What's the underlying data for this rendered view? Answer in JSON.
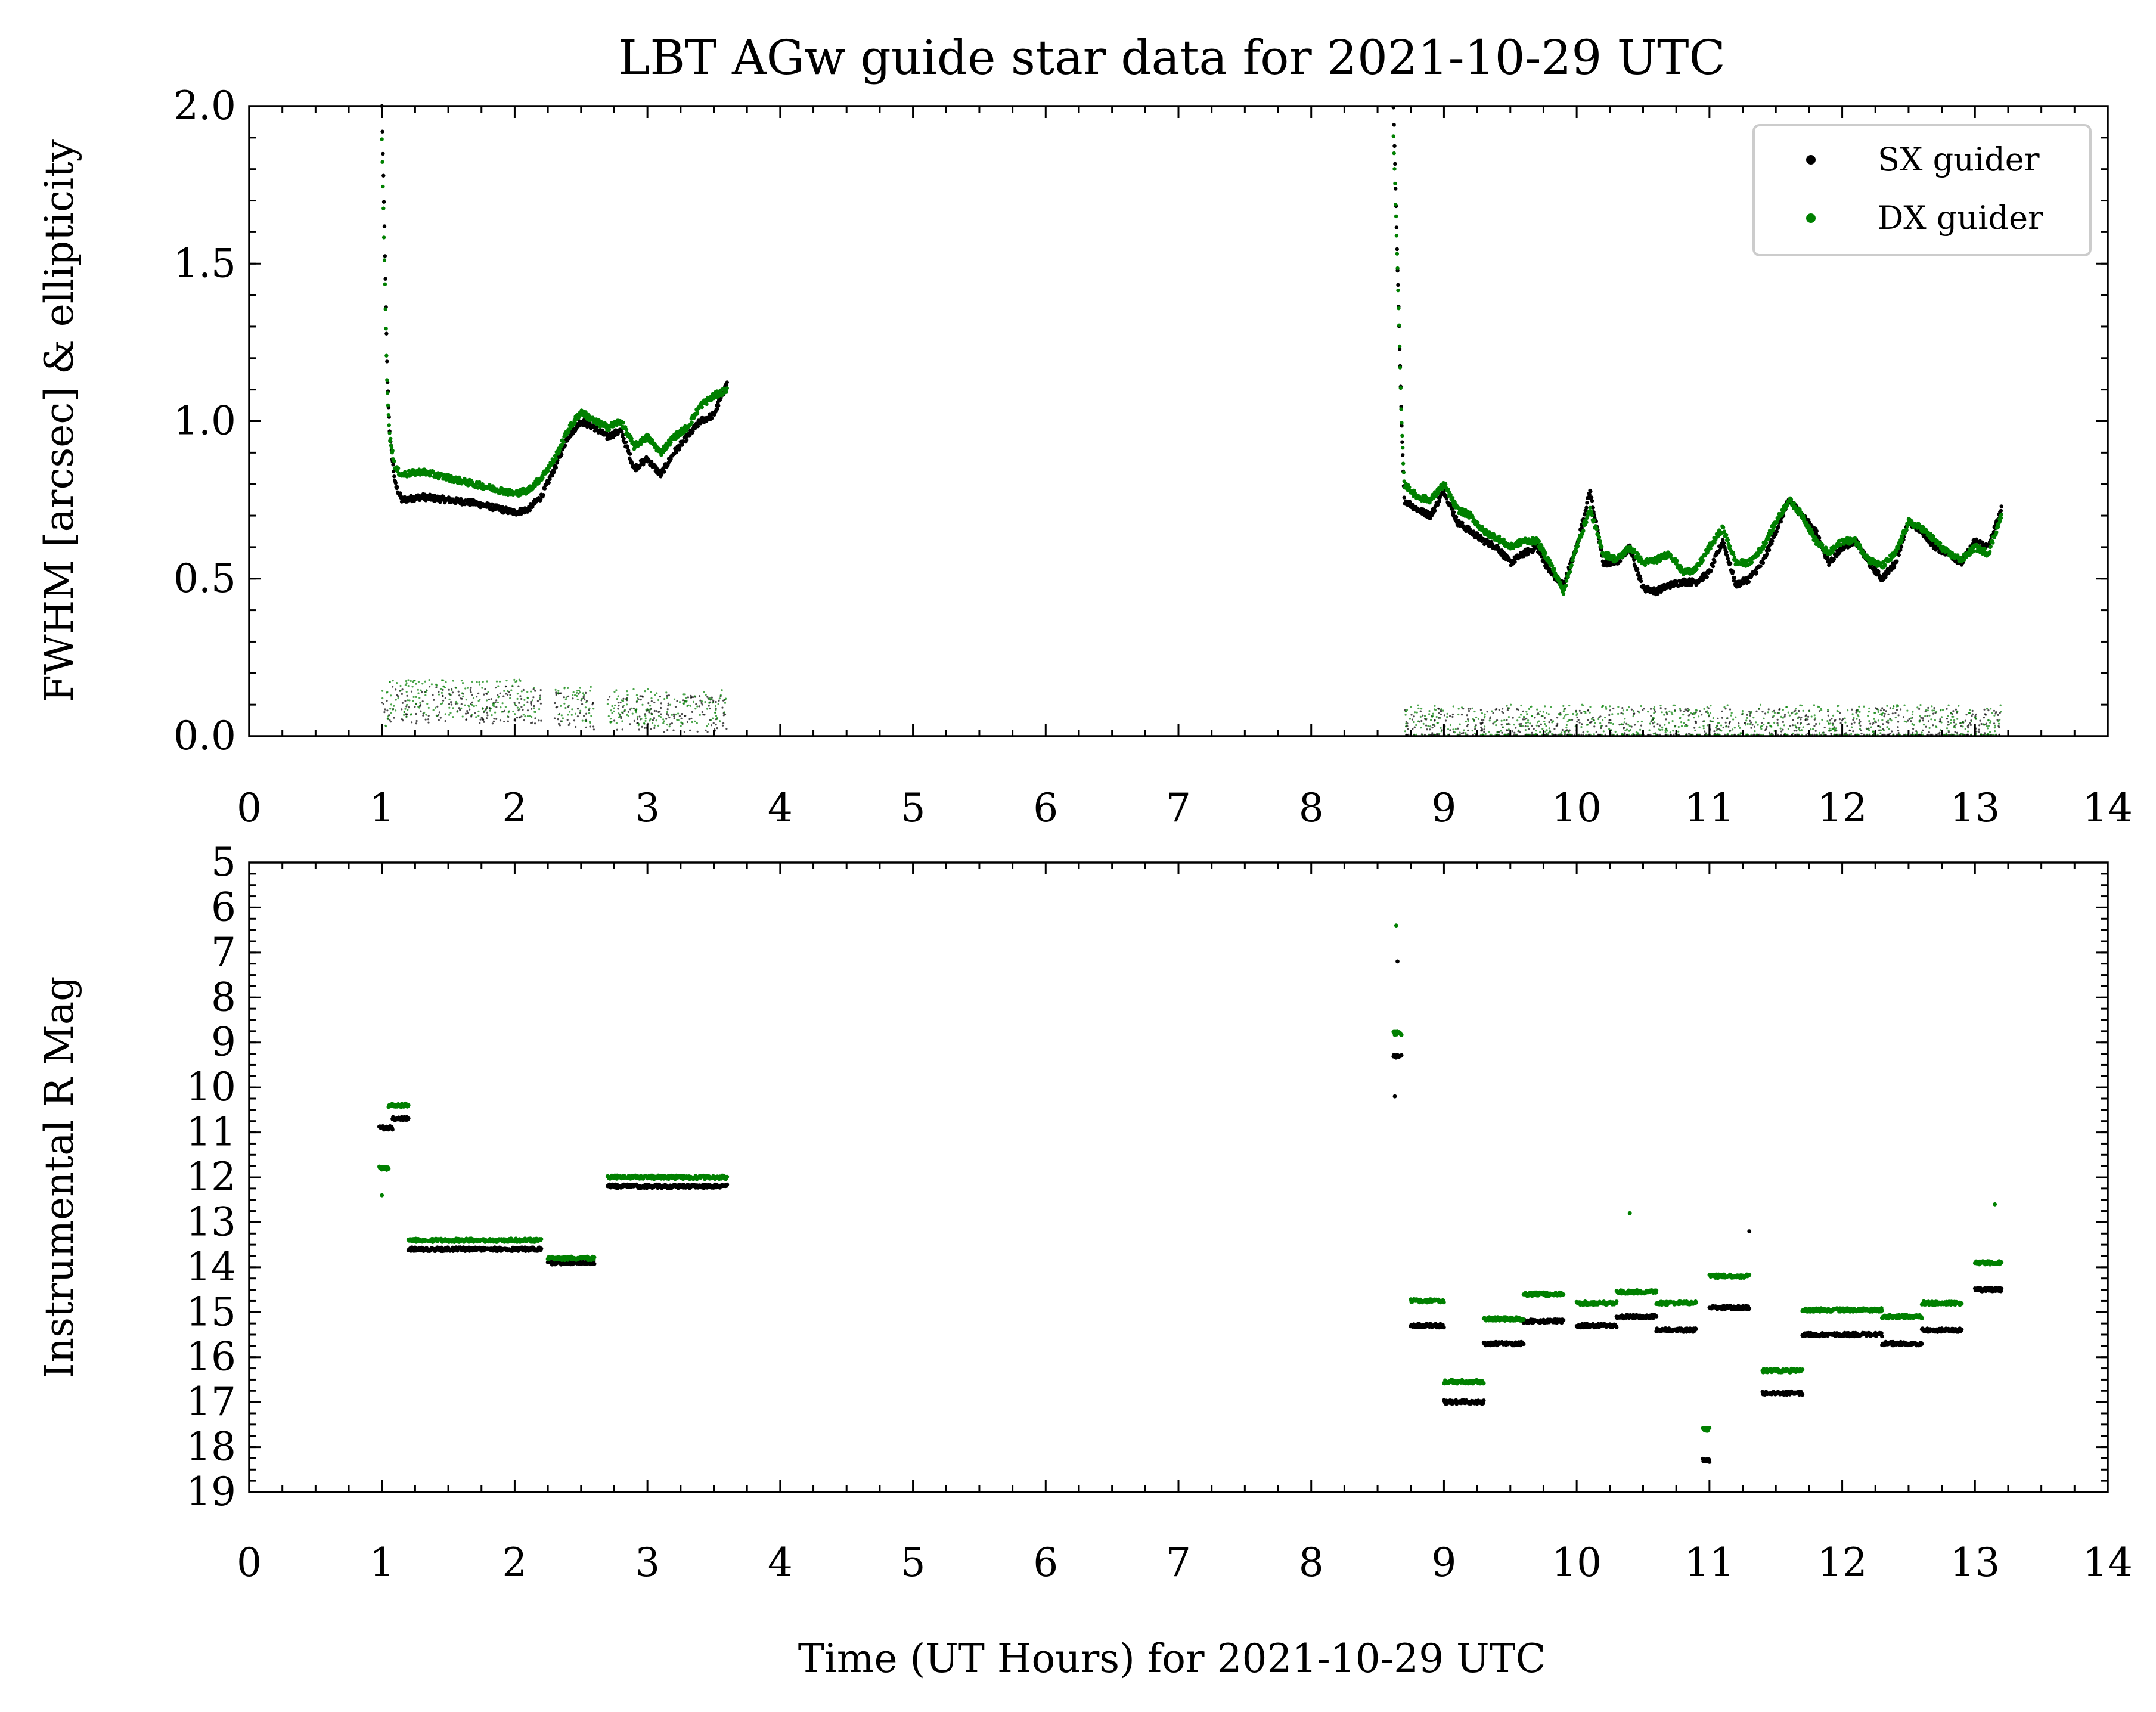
{
  "figure": {
    "title": "LBT AGw guide star data for 2021-10-29 UTC"
  },
  "chart_data": [
    {
      "type": "scatter",
      "title": "LBT AGw guide star data for 2021-10-29 UTC",
      "xlabel": "",
      "ylabel": "FWHM [arcsec] & ellipticity",
      "xlim": [
        0,
        14
      ],
      "ylim": [
        0,
        2.0
      ],
      "x_ticks": [
        "0",
        "1",
        "2",
        "3",
        "4",
        "5",
        "6",
        "7",
        "8",
        "9",
        "10",
        "11",
        "12",
        "13",
        "14"
      ],
      "y_ticks": [
        "0.0",
        "0.5",
        "1.0",
        "1.5",
        "2.0"
      ],
      "grid": false,
      "legend": {
        "position": "top-right",
        "entries": [
          "SX guider",
          "DX guider"
        ]
      },
      "series": [
        {
          "name": "SX guider",
          "color": "#000000",
          "fwhm_curve": [
            [
              1.0,
              2.0
            ],
            [
              1.02,
              1.6
            ],
            [
              1.04,
              1.15
            ],
            [
              1.06,
              0.95
            ],
            [
              1.1,
              0.8
            ],
            [
              1.15,
              0.75
            ],
            [
              1.3,
              0.76
            ],
            [
              1.5,
              0.75
            ],
            [
              1.7,
              0.74
            ],
            [
              1.9,
              0.72
            ],
            [
              2.0,
              0.71
            ],
            [
              2.1,
              0.72
            ],
            [
              2.2,
              0.76
            ],
            [
              2.3,
              0.85
            ],
            [
              2.4,
              0.95
            ],
            [
              2.5,
              1.0
            ],
            [
              2.6,
              0.98
            ],
            [
              2.7,
              0.95
            ],
            [
              2.8,
              0.97
            ],
            [
              2.9,
              0.85
            ],
            [
              3.0,
              0.88
            ],
            [
              3.1,
              0.83
            ],
            [
              3.2,
              0.9
            ],
            [
              3.3,
              0.95
            ],
            [
              3.4,
              1.0
            ],
            [
              3.5,
              1.02
            ],
            [
              3.6,
              1.12
            ],
            [
              8.62,
              2.0
            ],
            [
              8.65,
              1.5
            ],
            [
              8.68,
              1.0
            ],
            [
              8.7,
              0.75
            ],
            [
              8.8,
              0.72
            ],
            [
              8.9,
              0.7
            ],
            [
              9.0,
              0.78
            ],
            [
              9.1,
              0.68
            ],
            [
              9.2,
              0.65
            ],
            [
              9.3,
              0.62
            ],
            [
              9.4,
              0.6
            ],
            [
              9.5,
              0.55
            ],
            [
              9.6,
              0.58
            ],
            [
              9.7,
              0.6
            ],
            [
              9.8,
              0.52
            ],
            [
              9.9,
              0.48
            ],
            [
              10.0,
              0.6
            ],
            [
              10.1,
              0.78
            ],
            [
              10.2,
              0.55
            ],
            [
              10.3,
              0.55
            ],
            [
              10.4,
              0.6
            ],
            [
              10.5,
              0.47
            ],
            [
              10.6,
              0.46
            ],
            [
              10.7,
              0.48
            ],
            [
              10.8,
              0.49
            ],
            [
              10.9,
              0.49
            ],
            [
              11.0,
              0.52
            ],
            [
              11.1,
              0.62
            ],
            [
              11.2,
              0.48
            ],
            [
              11.3,
              0.5
            ],
            [
              11.4,
              0.55
            ],
            [
              11.5,
              0.65
            ],
            [
              11.6,
              0.75
            ],
            [
              11.7,
              0.7
            ],
            [
              11.8,
              0.65
            ],
            [
              11.9,
              0.55
            ],
            [
              12.0,
              0.6
            ],
            [
              12.1,
              0.62
            ],
            [
              12.2,
              0.55
            ],
            [
              12.3,
              0.5
            ],
            [
              12.4,
              0.55
            ],
            [
              12.5,
              0.68
            ],
            [
              12.6,
              0.65
            ],
            [
              12.7,
              0.6
            ],
            [
              12.8,
              0.58
            ],
            [
              12.9,
              0.55
            ],
            [
              13.0,
              0.62
            ],
            [
              13.1,
              0.6
            ],
            [
              13.2,
              0.72
            ]
          ],
          "ellipticity_level": [
            [
              1.0,
              1.05,
              0.08
            ],
            [
              1.05,
              2.2,
              0.1
            ],
            [
              2.3,
              2.6,
              0.08
            ],
            [
              2.7,
              3.6,
              0.07
            ],
            [
              8.7,
              13.2,
              0.03
            ]
          ]
        },
        {
          "name": "DX guider",
          "color": "#008000",
          "fwhm_curve": [
            [
              1.0,
              1.9
            ],
            [
              1.02,
              1.5
            ],
            [
              1.04,
              1.1
            ],
            [
              1.06,
              0.95
            ],
            [
              1.1,
              0.85
            ],
            [
              1.15,
              0.83
            ],
            [
              1.3,
              0.84
            ],
            [
              1.5,
              0.82
            ],
            [
              1.7,
              0.8
            ],
            [
              1.9,
              0.78
            ],
            [
              2.0,
              0.77
            ],
            [
              2.1,
              0.78
            ],
            [
              2.2,
              0.82
            ],
            [
              2.3,
              0.88
            ],
            [
              2.4,
              0.97
            ],
            [
              2.5,
              1.03
            ],
            [
              2.6,
              1.0
            ],
            [
              2.7,
              0.98
            ],
            [
              2.8,
              1.0
            ],
            [
              2.9,
              0.92
            ],
            [
              3.0,
              0.95
            ],
            [
              3.1,
              0.9
            ],
            [
              3.2,
              0.95
            ],
            [
              3.3,
              0.98
            ],
            [
              3.4,
              1.05
            ],
            [
              3.5,
              1.08
            ],
            [
              3.6,
              1.1
            ],
            [
              8.62,
              1.9
            ],
            [
              8.65,
              1.5
            ],
            [
              8.68,
              1.0
            ],
            [
              8.7,
              0.8
            ],
            [
              8.8,
              0.76
            ],
            [
              8.9,
              0.75
            ],
            [
              9.0,
              0.8
            ],
            [
              9.1,
              0.72
            ],
            [
              9.2,
              0.7
            ],
            [
              9.3,
              0.65
            ],
            [
              9.4,
              0.63
            ],
            [
              9.5,
              0.6
            ],
            [
              9.6,
              0.62
            ],
            [
              9.7,
              0.62
            ],
            [
              9.8,
              0.55
            ],
            [
              9.9,
              0.46
            ],
            [
              10.0,
              0.6
            ],
            [
              10.1,
              0.72
            ],
            [
              10.2,
              0.58
            ],
            [
              10.3,
              0.56
            ],
            [
              10.4,
              0.6
            ],
            [
              10.5,
              0.55
            ],
            [
              10.6,
              0.56
            ],
            [
              10.7,
              0.58
            ],
            [
              10.8,
              0.52
            ],
            [
              10.9,
              0.53
            ],
            [
              11.0,
              0.6
            ],
            [
              11.1,
              0.66
            ],
            [
              11.2,
              0.55
            ],
            [
              11.3,
              0.55
            ],
            [
              11.4,
              0.6
            ],
            [
              11.5,
              0.68
            ],
            [
              11.6,
              0.75
            ],
            [
              11.7,
              0.7
            ],
            [
              11.8,
              0.62
            ],
            [
              11.9,
              0.58
            ],
            [
              12.0,
              0.62
            ],
            [
              12.1,
              0.62
            ],
            [
              12.2,
              0.56
            ],
            [
              12.3,
              0.54
            ],
            [
              12.4,
              0.58
            ],
            [
              12.5,
              0.68
            ],
            [
              12.6,
              0.66
            ],
            [
              12.7,
              0.62
            ],
            [
              12.8,
              0.58
            ],
            [
              12.9,
              0.56
            ],
            [
              13.0,
              0.6
            ],
            [
              13.1,
              0.58
            ],
            [
              13.2,
              0.7
            ]
          ],
          "ellipticity_level": [
            [
              1.0,
              1.05,
              0.09
            ],
            [
              1.05,
              2.2,
              0.12
            ],
            [
              2.3,
              2.6,
              0.1
            ],
            [
              2.7,
              3.6,
              0.09
            ],
            [
              8.7,
              13.2,
              0.04
            ]
          ]
        }
      ]
    },
    {
      "type": "scatter",
      "xlabel": "Time (UT Hours) for 2021-10-29 UTC",
      "ylabel": "Instrumental R Mag",
      "xlim": [
        0,
        14
      ],
      "ylim": [
        19,
        5
      ],
      "y_inverted": true,
      "x_ticks": [
        "0",
        "1",
        "2",
        "3",
        "4",
        "5",
        "6",
        "7",
        "8",
        "9",
        "10",
        "11",
        "12",
        "13",
        "14"
      ],
      "y_ticks": [
        "5",
        "6",
        "7",
        "8",
        "9",
        "10",
        "11",
        "12",
        "13",
        "14",
        "15",
        "16",
        "17",
        "18",
        "19"
      ],
      "grid": false,
      "series": [
        {
          "name": "SX guider",
          "color": "#000000",
          "segments": [
            [
              0.98,
              1.08,
              10.9
            ],
            [
              1.08,
              1.2,
              10.7
            ],
            [
              1.2,
              2.2,
              13.6
            ],
            [
              2.25,
              2.6,
              13.9
            ],
            [
              2.7,
              3.6,
              12.2
            ],
            [
              8.62,
              8.68,
              9.3
            ],
            [
              8.75,
              9.0,
              15.3
            ],
            [
              9.0,
              9.3,
              17.0
            ],
            [
              9.3,
              9.6,
              15.7
            ],
            [
              9.6,
              9.9,
              15.2
            ],
            [
              10.0,
              10.3,
              15.3
            ],
            [
              10.3,
              10.6,
              15.1
            ],
            [
              10.6,
              10.9,
              15.4
            ],
            [
              10.95,
              11.0,
              18.3
            ],
            [
              11.0,
              11.3,
              14.9
            ],
            [
              11.4,
              11.7,
              16.8
            ],
            [
              11.7,
              12.3,
              15.5
            ],
            [
              12.3,
              12.6,
              15.7
            ],
            [
              12.6,
              12.9,
              15.4
            ],
            [
              13.0,
              13.2,
              14.5
            ]
          ],
          "outliers": [
            [
              8.63,
              10.2
            ],
            [
              8.65,
              7.2
            ],
            [
              11.3,
              13.2
            ]
          ]
        },
        {
          "name": "DX guider",
          "color": "#008000",
          "segments": [
            [
              0.98,
              1.05,
              11.8
            ],
            [
              1.05,
              1.2,
              10.4
            ],
            [
              1.2,
              2.2,
              13.4
            ],
            [
              2.25,
              2.6,
              13.8
            ],
            [
              2.7,
              3.6,
              12.0
            ],
            [
              8.62,
              8.68,
              8.8
            ],
            [
              8.75,
              9.0,
              14.75
            ],
            [
              9.0,
              9.3,
              16.55
            ],
            [
              9.3,
              9.6,
              15.15
            ],
            [
              9.6,
              9.9,
              14.6
            ],
            [
              10.0,
              10.3,
              14.8
            ],
            [
              10.3,
              10.6,
              14.55
            ],
            [
              10.6,
              10.9,
              14.8
            ],
            [
              10.95,
              11.0,
              17.6
            ],
            [
              11.0,
              11.3,
              14.2
            ],
            [
              11.4,
              11.7,
              16.3
            ],
            [
              11.7,
              12.3,
              14.95
            ],
            [
              12.3,
              12.6,
              15.1
            ],
            [
              12.6,
              12.9,
              14.8
            ],
            [
              13.0,
              13.2,
              13.9
            ]
          ],
          "outliers": [
            [
              8.64,
              6.4
            ],
            [
              1.0,
              12.4
            ],
            [
              10.4,
              12.8
            ],
            [
              13.15,
              12.6
            ]
          ]
        }
      ]
    }
  ]
}
